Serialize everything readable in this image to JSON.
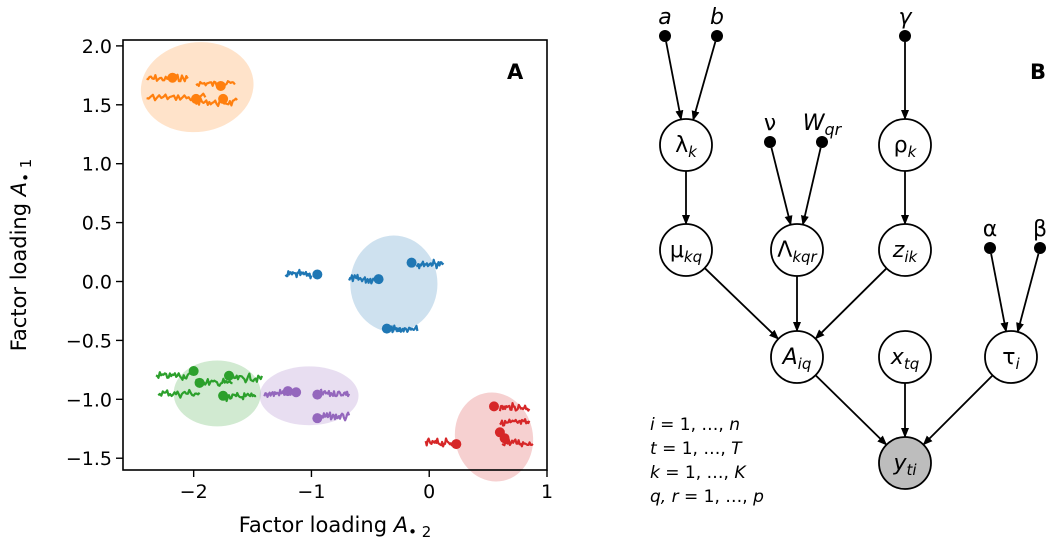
{
  "chart_data": [
    {
      "type": "scatter",
      "panel_label": "A",
      "xlabel_main": "Factor loading ",
      "xlabel_var": "A",
      "xlabel_sub": "• 2",
      "ylabel_main": "Factor loading ",
      "ylabel_var": "A",
      "ylabel_sub": "• 1",
      "xlim": [
        -2.6,
        1.0
      ],
      "ylim": [
        -1.6,
        2.05
      ],
      "xticks": [
        -2,
        -1,
        0,
        1
      ],
      "yticks": [
        -1.5,
        -1.0,
        -0.5,
        0.0,
        0.5,
        1.0,
        1.5,
        2.0
      ],
      "xtick_labels": [
        "−2",
        "−1",
        "0",
        "1"
      ],
      "ytick_labels": [
        "−1.5",
        "−1.0",
        "−0.5",
        "0.0",
        "0.5",
        "1.0",
        "1.5",
        "2.0"
      ],
      "grid": false,
      "clusters": [
        {
          "color": "#ff7f0e",
          "center": [
            -1.97,
            1.65
          ],
          "radii": [
            0.48,
            0.38
          ],
          "rotation": -8,
          "points": [
            [
              -2.18,
              1.73
            ],
            [
              -1.98,
              1.55
            ],
            [
              -1.75,
              1.55
            ],
            [
              -1.77,
              1.66
            ]
          ]
        },
        {
          "color": "#1f77b4",
          "center": [
            -0.3,
            -0.02
          ],
          "radii": [
            0.37,
            0.41
          ],
          "rotation": 0,
          "points": [
            [
              -0.95,
              0.06
            ],
            [
              -0.43,
              0.02
            ],
            [
              -0.15,
              0.16
            ],
            [
              -0.36,
              -0.4
            ]
          ]
        },
        {
          "color": "#2ca02c",
          "center": [
            -1.8,
            -0.95
          ],
          "radii": [
            0.37,
            0.28
          ],
          "rotation": 0,
          "points": [
            [
              -2.0,
              -0.76
            ],
            [
              -1.95,
              -0.86
            ],
            [
              -1.7,
              -0.8
            ],
            [
              -1.75,
              -0.97
            ]
          ]
        },
        {
          "color": "#9467bd",
          "center": [
            -1.02,
            -0.97
          ],
          "radii": [
            0.42,
            0.25
          ],
          "rotation": 0,
          "points": [
            [
              -1.2,
              -0.93
            ],
            [
              -0.95,
              -0.96
            ],
            [
              -0.95,
              -1.16
            ],
            [
              -1.13,
              -0.94
            ]
          ]
        },
        {
          "color": "#d62728",
          "center": [
            0.55,
            -1.32
          ],
          "radii": [
            0.33,
            0.38
          ],
          "rotation": -12,
          "points": [
            [
              0.23,
              -1.38
            ],
            [
              0.55,
              -1.06
            ],
            [
              0.6,
              -1.28
            ],
            [
              0.64,
              -1.33
            ]
          ]
        }
      ],
      "traces": [
        {
          "color": "#ff7f0e",
          "x": [
            -2.4,
            -2.05
          ],
          "y": 1.72
        },
        {
          "color": "#ff7f0e",
          "x": [
            -2.4,
            -1.9
          ],
          "y": 1.56
        },
        {
          "color": "#ff7f0e",
          "x": [
            -1.98,
            -1.65
          ],
          "y": 1.68
        },
        {
          "color": "#ff7f0e",
          "x": [
            -1.98,
            -1.63
          ],
          "y": 1.52
        },
        {
          "color": "#1f77b4",
          "x": [
            -1.22,
            -1.0
          ],
          "y": 0.06
        },
        {
          "color": "#1f77b4",
          "x": [
            -0.68,
            -0.46
          ],
          "y": 0.02
        },
        {
          "color": "#1f77b4",
          "x": [
            -0.11,
            0.12
          ],
          "y": 0.15
        },
        {
          "color": "#1f77b4",
          "x": [
            -0.32,
            -0.1
          ],
          "y": -0.41
        },
        {
          "color": "#2ca02c",
          "x": [
            -2.32,
            -2.02
          ],
          "y": -0.8
        },
        {
          "color": "#2ca02c",
          "x": [
            -2.3,
            -1.95
          ],
          "y": -0.95
        },
        {
          "color": "#2ca02c",
          "x": [
            -1.98,
            -1.67
          ],
          "y": -0.86
        },
        {
          "color": "#2ca02c",
          "x": [
            -1.72,
            -1.42
          ],
          "y": -0.82
        },
        {
          "color": "#2ca02c",
          "x": [
            -1.75,
            -1.47
          ],
          "y": -0.98
        },
        {
          "color": "#9467bd",
          "x": [
            -1.4,
            -1.15
          ],
          "y": -0.95
        },
        {
          "color": "#9467bd",
          "x": [
            -0.92,
            -0.68
          ],
          "y": -0.95
        },
        {
          "color": "#9467bd",
          "x": [
            -0.92,
            -0.68
          ],
          "y": -1.15
        },
        {
          "color": "#d62728",
          "x": [
            -0.03,
            0.2
          ],
          "y": -1.37
        },
        {
          "color": "#d62728",
          "x": [
            0.6,
            0.85
          ],
          "y": -1.07
        },
        {
          "color": "#d62728",
          "x": [
            0.6,
            0.85
          ],
          "y": -1.2
        },
        {
          "color": "#d62728",
          "x": [
            0.62,
            0.88
          ],
          "y": -1.37
        }
      ]
    }
  ],
  "diagram": {
    "panel_label": "B",
    "hyperparameters": [
      {
        "id": "a",
        "main": "a",
        "sub": "",
        "italic": true
      },
      {
        "id": "b",
        "main": "b",
        "sub": "",
        "italic": true
      },
      {
        "id": "gamma",
        "main": "γ",
        "sub": "",
        "italic": true
      },
      {
        "id": "nu",
        "main": "ν",
        "sub": "",
        "italic": false
      },
      {
        "id": "W",
        "main": "W",
        "sub": "qr",
        "italic": true
      },
      {
        "id": "alpha",
        "main": "α",
        "sub": "",
        "italic": false
      },
      {
        "id": "beta",
        "main": "β",
        "sub": "",
        "italic": false
      }
    ],
    "nodes": [
      {
        "id": "lambda",
        "main": "λ",
        "sub": "k",
        "main_italic": false,
        "observed": false
      },
      {
        "id": "rho",
        "main": "ρ",
        "sub": "k",
        "main_italic": false,
        "observed": false
      },
      {
        "id": "mu",
        "main": "μ",
        "sub": "kq",
        "main_italic": false,
        "observed": false
      },
      {
        "id": "Lambda",
        "main": "Λ",
        "sub": "kqr",
        "main_italic": false,
        "observed": false
      },
      {
        "id": "z",
        "main": "z",
        "sub": "ik",
        "main_italic": true,
        "observed": false
      },
      {
        "id": "A",
        "main": "A",
        "sub": "iq",
        "main_italic": true,
        "observed": false
      },
      {
        "id": "x",
        "main": "x",
        "sub": "tq",
        "main_italic": true,
        "observed": false
      },
      {
        "id": "tau",
        "main": "τ",
        "sub": "i",
        "main_italic": false,
        "observed": false
      },
      {
        "id": "y",
        "main": "y",
        "sub": "ti",
        "main_italic": true,
        "observed": true
      }
    ],
    "edges": [
      [
        "a",
        "lambda"
      ],
      [
        "b",
        "lambda"
      ],
      [
        "gamma",
        "rho"
      ],
      [
        "nu",
        "Lambda"
      ],
      [
        "W",
        "Lambda"
      ],
      [
        "lambda",
        "mu"
      ],
      [
        "rho",
        "z"
      ],
      [
        "mu",
        "A"
      ],
      [
        "Lambda",
        "A"
      ],
      [
        "z",
        "A"
      ],
      [
        "alpha",
        "tau"
      ],
      [
        "beta",
        "tau"
      ],
      [
        "A",
        "y"
      ],
      [
        "x",
        "y"
      ],
      [
        "tau",
        "y"
      ]
    ],
    "index_ranges": [
      {
        "var": "i",
        "range": " = 1, …, ",
        "end": "n"
      },
      {
        "var": "t",
        "range": " = 1, …, ",
        "end": "T"
      },
      {
        "var": "k",
        "range": " = 1, …, ",
        "end": "K"
      },
      {
        "var": "q, r",
        "range": " = 1, …, ",
        "end": "p"
      }
    ],
    "colors": {
      "node_fill": "#ffffff",
      "observed_fill": "#bdbdbd",
      "stroke": "#000000"
    }
  }
}
